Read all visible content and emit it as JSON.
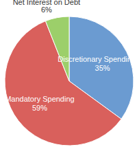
{
  "chart_data": {
    "type": "pie",
    "categories": [
      "Discretionary Spending",
      "Mandatory Spending",
      "Net Interest on Debt"
    ],
    "values": [
      35,
      59,
      6
    ],
    "value_labels": [
      "35%",
      "59%",
      "6%"
    ],
    "colors": [
      "#6b9bd1",
      "#d9605c",
      "#9ccf6a"
    ],
    "data_labels": true
  }
}
